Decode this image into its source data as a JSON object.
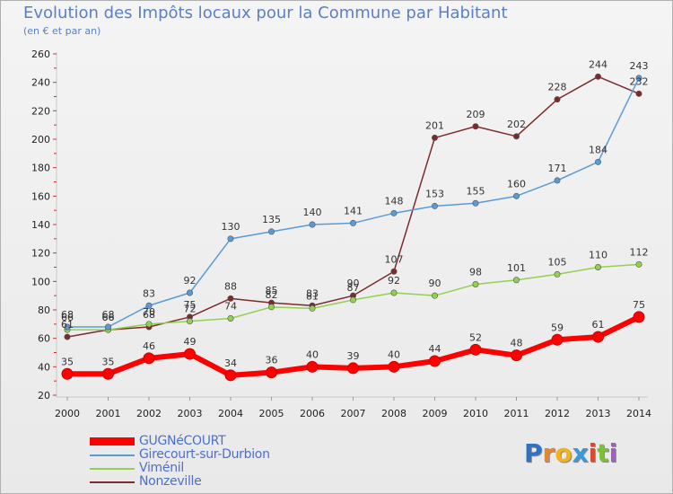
{
  "chart_data": {
    "type": "line",
    "title": "Evolution des Impôts locaux pour la Commune par Habitant",
    "subtitle": "(en € et par an)",
    "xlabel": "",
    "ylabel": "",
    "ylim": [
      20,
      260
    ],
    "yticks": [
      20,
      40,
      60,
      80,
      100,
      120,
      140,
      160,
      180,
      200,
      220,
      240,
      260
    ],
    "grid": false,
    "legend_position": "bottom-left",
    "categories": [
      "2000",
      "2001",
      "2002",
      "2003",
      "2004",
      "2005",
      "2006",
      "2007",
      "2008",
      "2009",
      "2010",
      "2011",
      "2012",
      "2013",
      "2014"
    ],
    "series": [
      {
        "name": "GUGNéCOURT",
        "color": "#ff0000",
        "values": [
          35,
          35,
          46,
          49,
          34,
          36,
          40,
          39,
          40,
          44,
          52,
          48,
          59,
          61,
          75
        ]
      },
      {
        "name": "Girecourt-sur-Durbion",
        "color": "#5b9bd5",
        "values": [
          68,
          68,
          83,
          92,
          130,
          135,
          140,
          141,
          148,
          153,
          155,
          160,
          171,
          184,
          243
        ]
      },
      {
        "name": "Viménil",
        "color": "#92d050",
        "values": [
          66,
          66,
          70,
          72,
          74,
          82,
          81,
          87,
          92,
          90,
          98,
          101,
          105,
          110,
          112
        ]
      },
      {
        "name": "Nonzeville",
        "color": "#7b2b2b",
        "values": [
          61,
          66,
          68,
          75,
          88,
          85,
          83,
          90,
          107,
          201,
          209,
          202,
          228,
          244,
          232
        ]
      }
    ]
  },
  "brand": {
    "letters": [
      "P",
      "r",
      "o",
      "x",
      "i",
      "t",
      "i"
    ]
  }
}
